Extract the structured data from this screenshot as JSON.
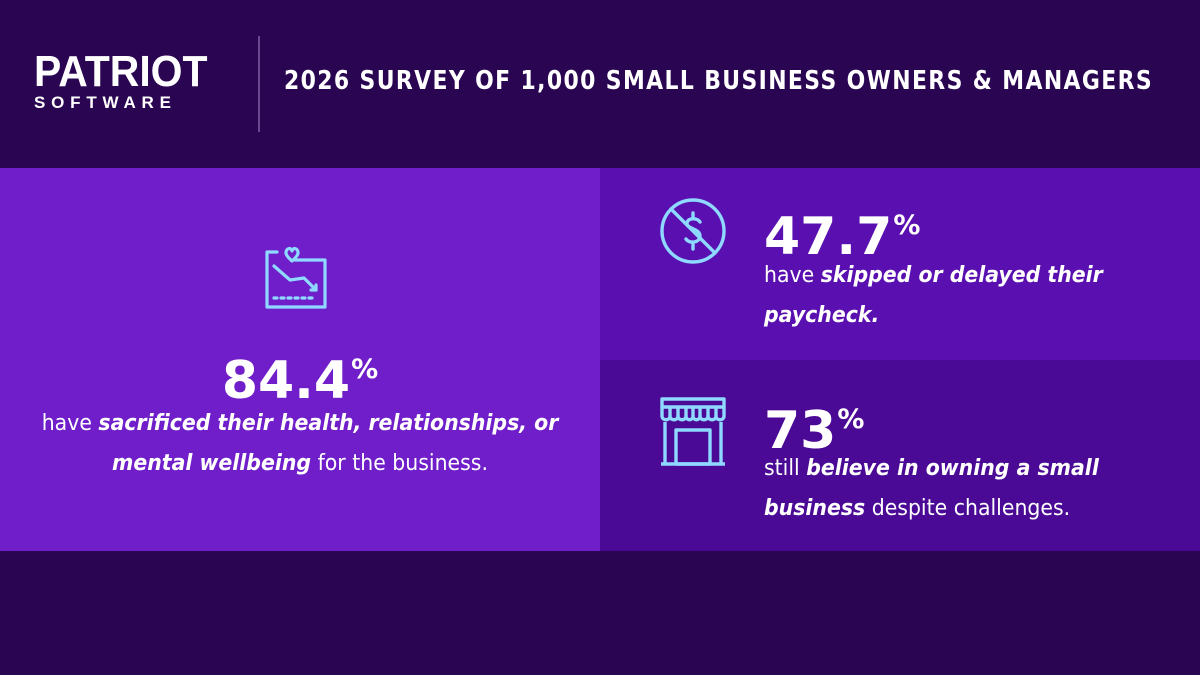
{
  "brand": {
    "logo_top": "PATRIOT",
    "logo_bottom": "SOFTWARE"
  },
  "headline": "2026 SURVEY OF 1,000 SMALL BUSINESS OWNERS & MANAGERS",
  "colors": {
    "background": "#2a0552",
    "panel_left": "#6f1ec9",
    "panel_top_right": "#5a10b0",
    "panel_bottom_right": "#4b0a96",
    "icon": "#8fd8ff"
  },
  "stats": [
    {
      "icon": "declining-chart-heart-icon",
      "value": "84.4",
      "unit": "%",
      "pre": "have ",
      "emphasis": "sacrificed their health, relationships, or mental wellbeing",
      "post": " for the business."
    },
    {
      "icon": "no-dollar-icon",
      "value": "47.7",
      "unit": "%",
      "pre": "have ",
      "emphasis": "skipped or delayed their paycheck.",
      "post": ""
    },
    {
      "icon": "storefront-icon",
      "value": "73",
      "unit": "%",
      "pre": "still ",
      "emphasis": "believe in owning a small business",
      "post": " despite challenges."
    }
  ]
}
